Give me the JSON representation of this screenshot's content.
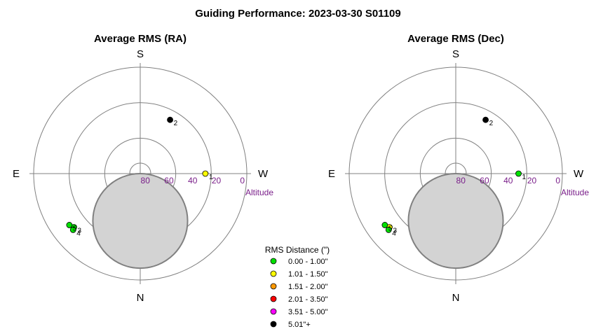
{
  "title": "Guiding Performance: 2023-03-30 S01109",
  "chart_data": [
    {
      "type": "scatter",
      "title": "Average RMS (RA)",
      "projection": "polar-altitude",
      "compass": {
        "top": "S",
        "bottom": "N",
        "left": "E",
        "right": "W"
      },
      "altitude_ticks": [
        80,
        60,
        40,
        20,
        0
      ],
      "altitude_label": "Altitude",
      "moon": {
        "azimuth_deg": 0,
        "altitude_deg": 50,
        "radius_deg": 12.5
      },
      "points": [
        {
          "label": "1",
          "azimuth_deg": 270,
          "altitude_deg": 35,
          "color": "#ffff00"
        },
        {
          "label": "2",
          "azimuth_deg": 209,
          "altitude_deg": 38,
          "color": "#000000"
        },
        {
          "label": "3",
          "azimuth_deg": 51,
          "altitude_deg": 18,
          "color": "#00e000"
        },
        {
          "label": "4",
          "azimuth_deg": 50,
          "altitude_deg": 16,
          "color": "#00e000"
        },
        {
          "label": "5",
          "azimuth_deg": 54,
          "altitude_deg": 16,
          "color": "#00e000"
        }
      ]
    },
    {
      "type": "scatter",
      "title": "Average RMS (Dec)",
      "projection": "polar-altitude",
      "compass": {
        "top": "S",
        "bottom": "N",
        "left": "E",
        "right": "W"
      },
      "altitude_ticks": [
        80,
        60,
        40,
        20,
        0
      ],
      "altitude_label": "Altitude",
      "moon": {
        "azimuth_deg": 0,
        "altitude_deg": 50,
        "radius_deg": 12.5
      },
      "points": [
        {
          "label": "1",
          "azimuth_deg": 270,
          "altitude_deg": 37,
          "color": "#00e000"
        },
        {
          "label": "2",
          "azimuth_deg": 209,
          "altitude_deg": 38,
          "color": "#000000"
        },
        {
          "label": "3",
          "azimuth_deg": 51,
          "altitude_deg": 18,
          "color": "#ffff00"
        },
        {
          "label": "4",
          "azimuth_deg": 50,
          "altitude_deg": 16,
          "color": "#00e000"
        },
        {
          "label": "5",
          "azimuth_deg": 54,
          "altitude_deg": 16,
          "color": "#00e000"
        }
      ]
    }
  ],
  "legend": {
    "title": "RMS Distance (\")",
    "items": [
      {
        "label": "0.00 - 1.00\"",
        "color": "#00e000"
      },
      {
        "label": "1.01 - 1.50\"",
        "color": "#ffff00"
      },
      {
        "label": "1.51 - 2.00\"",
        "color": "#ff9900"
      },
      {
        "label": "2.01 - 3.50\"",
        "color": "#ff0000"
      },
      {
        "label": "3.51 - 5.00\"",
        "color": "#ff00ff"
      },
      {
        "label": "5.01\"+",
        "color": "#000000"
      }
    ]
  }
}
